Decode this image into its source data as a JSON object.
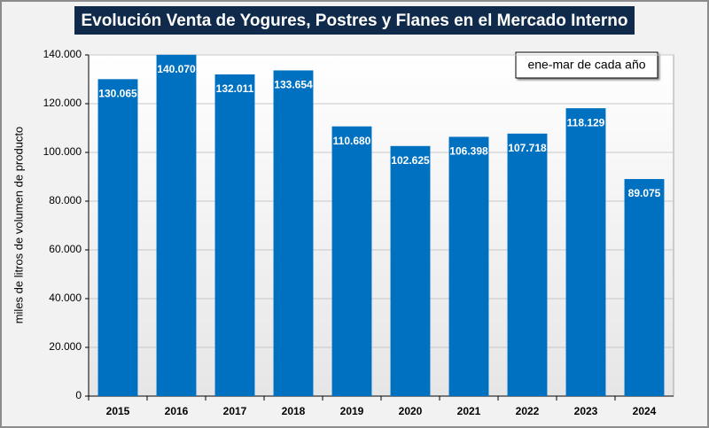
{
  "chart_data": {
    "type": "bar",
    "title": "Evolución Venta de Yogures, Postres y Flanes en el Mercado Interno",
    "annotation": "ene-mar de cada año",
    "y_label": "miles de litros de volumen de producto",
    "categories": [
      "2015",
      "2016",
      "2017",
      "2018",
      "2019",
      "2020",
      "2021",
      "2022",
      "2023",
      "2024"
    ],
    "values": [
      130065,
      140070,
      132011,
      133654,
      110680,
      102625,
      106398,
      107718,
      118129,
      89075
    ],
    "value_labels": [
      "130.065",
      "140.070",
      "132.011",
      "133.654",
      "110.680",
      "102.625",
      "106.398",
      "107.718",
      "118.129",
      "89.075"
    ],
    "color": "#0070c0",
    "ylim": [
      0,
      140000
    ],
    "yticks": [
      0,
      {
        "value": 20000,
        "label": "20.000"
      },
      {
        "value": 40000,
        "label": "40.000"
      },
      {
        "value": 60000,
        "label": "60.000"
      },
      {
        "value": 80000,
        "label": "80.000"
      },
      {
        "value": 100000,
        "label": "100.000"
      },
      {
        "value": 120000,
        "label": "120.000"
      },
      {
        "value": 140000,
        "label": "140.000"
      }
    ],
    "grid": true
  }
}
